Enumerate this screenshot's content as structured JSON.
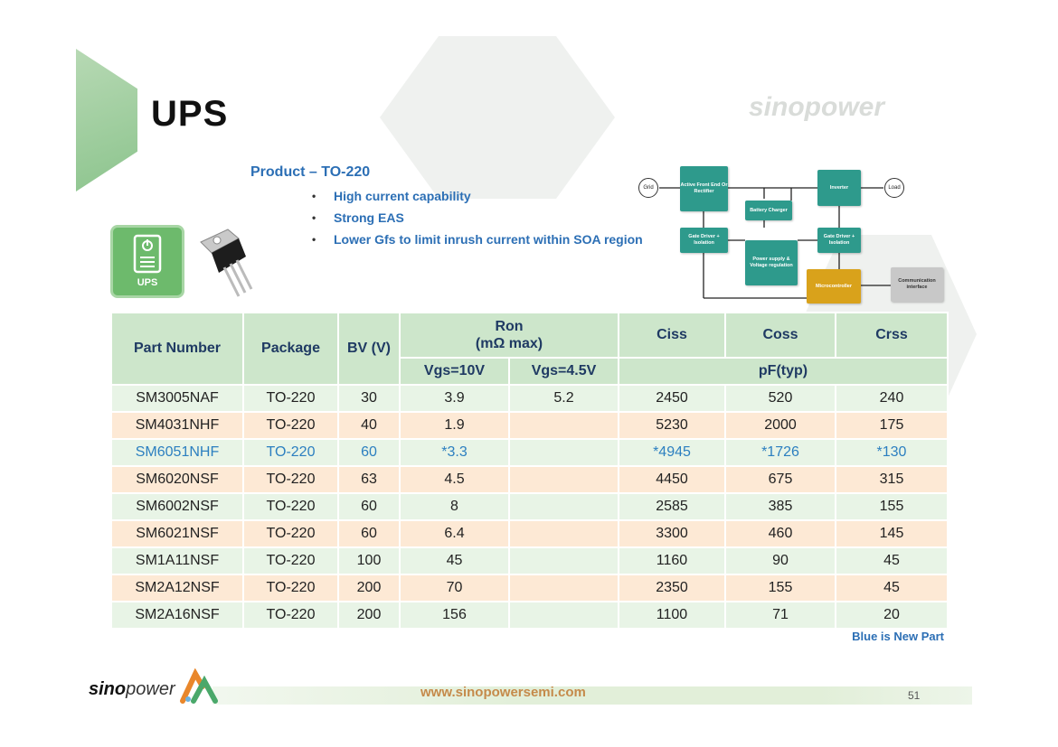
{
  "slide": {
    "title": "UPS",
    "watermark": "sinopower",
    "product_heading": "Product – TO-220",
    "bullets": [
      "High current capability",
      "Strong EAS",
      "Lower Gfs to limit inrush current within SOA region"
    ],
    "ups_icon_label": "UPS"
  },
  "diagram": {
    "grid": "Grid",
    "active_front_end": "Active Front End Or Rectifier",
    "inverter": "Inverter",
    "load": "Load",
    "battery_charger": "Battery Charger",
    "gate_driver_left": "Gate Driver + Isolation",
    "gate_driver_right": "Gate Driver + Isolation",
    "power_supply": "Power supply & Voltage regulation",
    "microcontroller": "Microcontroller",
    "communication": "Communication interface"
  },
  "table": {
    "headers": {
      "part_number": "Part Number",
      "package": "Package",
      "bv": "BV (V)",
      "ron": "Ron",
      "ron_unit": "(mΩ max)",
      "vgs10": "Vgs=10V",
      "vgs45": "Vgs=4.5V",
      "ciss": "Ciss",
      "coss": "Coss",
      "crss": "Crss",
      "pf": "pF(typ)"
    },
    "rows": [
      {
        "part": "SM3005NAF",
        "package": "TO-220",
        "bv": "30",
        "ron10": "3.9",
        "ron45": "5.2",
        "ciss": "2450",
        "coss": "520",
        "crss": "240"
      },
      {
        "part": "SM4031NHF",
        "package": "TO-220",
        "bv": "40",
        "ron10": "1.9",
        "ron45": "",
        "ciss": "5230",
        "coss": "2000",
        "crss": "175"
      },
      {
        "part": "SM6051NHF",
        "package": "TO-220",
        "bv": "60",
        "ron10": "*3.3",
        "ron45": "",
        "ciss": "*4945",
        "coss": "*1726",
        "crss": "*130"
      },
      {
        "part": "SM6020NSF",
        "package": "TO-220",
        "bv": "63",
        "ron10": "4.5",
        "ron45": "",
        "ciss": "4450",
        "coss": "675",
        "crss": "315"
      },
      {
        "part": "SM6002NSF",
        "package": "TO-220",
        "bv": "60",
        "ron10": "8",
        "ron45": "",
        "ciss": "2585",
        "coss": "385",
        "crss": "155"
      },
      {
        "part": "SM6021NSF",
        "package": "TO-220",
        "bv": "60",
        "ron10": "6.4",
        "ron45": "",
        "ciss": "3300",
        "coss": "460",
        "crss": "145"
      },
      {
        "part": "SM1A11NSF",
        "package": "TO-220",
        "bv": "100",
        "ron10": "45",
        "ron45": "",
        "ciss": "1160",
        "coss": "90",
        "crss": "45"
      },
      {
        "part": "SM2A12NSF",
        "package": "TO-220",
        "bv": "200",
        "ron10": "70",
        "ron45": "",
        "ciss": "2350",
        "coss": "155",
        "crss": "45"
      },
      {
        "part": "SM2A16NSF",
        "package": "TO-220",
        "bv": "200",
        "ron10": "156",
        "ron45": "",
        "ciss": "1100",
        "coss": "71",
        "crss": "20"
      }
    ],
    "note": "Blue is New Part"
  },
  "footer": {
    "logo_bold": "sino",
    "logo_rest": "power",
    "url": "www.sinopowersemi.com",
    "page_number": "51"
  },
  "colors": {
    "accent_blue": "#2c6fb5",
    "header_green": "#cde6cb",
    "row_green": "#e8f4e6",
    "row_peach": "#fde9d5",
    "teal_block": "#2e9a8c",
    "gold_block": "#d9a21b",
    "url_orange": "#c58a4a"
  }
}
